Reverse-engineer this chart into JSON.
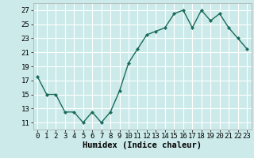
{
  "x": [
    0,
    1,
    2,
    3,
    4,
    5,
    6,
    7,
    8,
    9,
    10,
    11,
    12,
    13,
    14,
    15,
    16,
    17,
    18,
    19,
    20,
    21,
    22,
    23
  ],
  "y": [
    17.5,
    15.0,
    15.0,
    12.5,
    12.5,
    11.0,
    12.5,
    11.0,
    12.5,
    15.5,
    19.5,
    21.5,
    23.5,
    24.0,
    24.5,
    26.5,
    27.0,
    24.5,
    27.0,
    25.5,
    26.5,
    24.5,
    23.0,
    21.5
  ],
  "line_color": "#1a6b5a",
  "marker": "D",
  "markersize": 2.0,
  "linewidth": 1.0,
  "background_color": "#cceaea",
  "grid_color": "#ffffff",
  "grid_minor_color": "#e8f8f8",
  "xlabel": "Humidex (Indice chaleur)",
  "xlabel_fontsize": 7.5,
  "xlabel_fontweight": "bold",
  "tick_fontsize": 6.5,
  "ylim": [
    10,
    28
  ],
  "yticks": [
    11,
    13,
    15,
    17,
    19,
    21,
    23,
    25,
    27
  ],
  "xticks": [
    0,
    1,
    2,
    3,
    4,
    5,
    6,
    7,
    8,
    9,
    10,
    11,
    12,
    13,
    14,
    15,
    16,
    17,
    18,
    19,
    20,
    21,
    22,
    23
  ],
  "xlim": [
    -0.5,
    23.5
  ]
}
